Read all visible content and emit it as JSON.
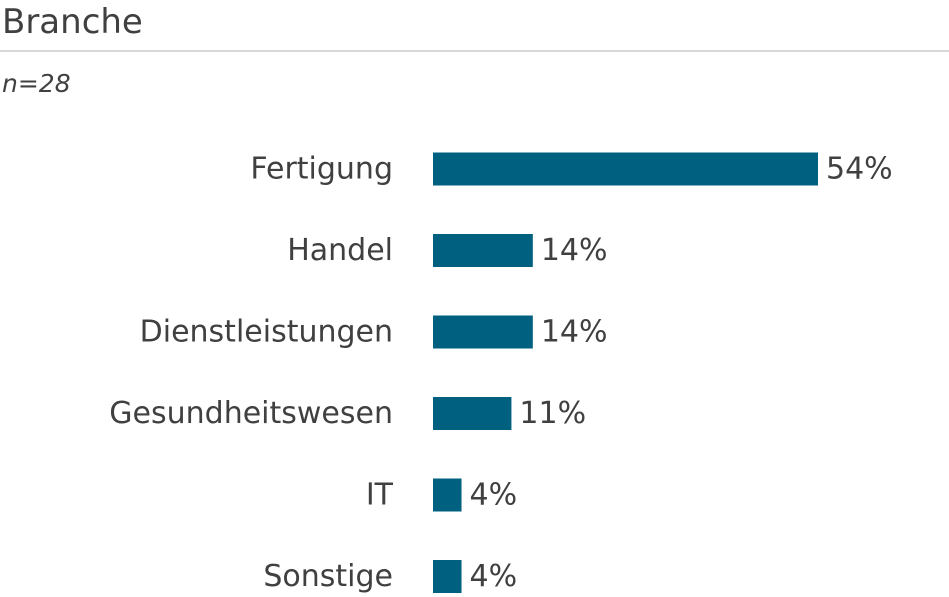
{
  "header": {
    "title": "Branche",
    "subtitle": "n=28"
  },
  "chart_data": {
    "type": "bar",
    "orientation": "horizontal",
    "categories": [
      "Fertigung",
      "Handel",
      "Dienstleistungen",
      "Gesundheitswesen",
      "IT",
      "Sonstige"
    ],
    "values": [
      54,
      14,
      14,
      11,
      4,
      4
    ],
    "value_labels": [
      "54%",
      "14%",
      "14%",
      "11%",
      "4%",
      "4%"
    ],
    "unit": "%",
    "bar_color": "#00607f",
    "xlim": [
      0,
      100
    ],
    "grid": false,
    "legend": "none"
  }
}
